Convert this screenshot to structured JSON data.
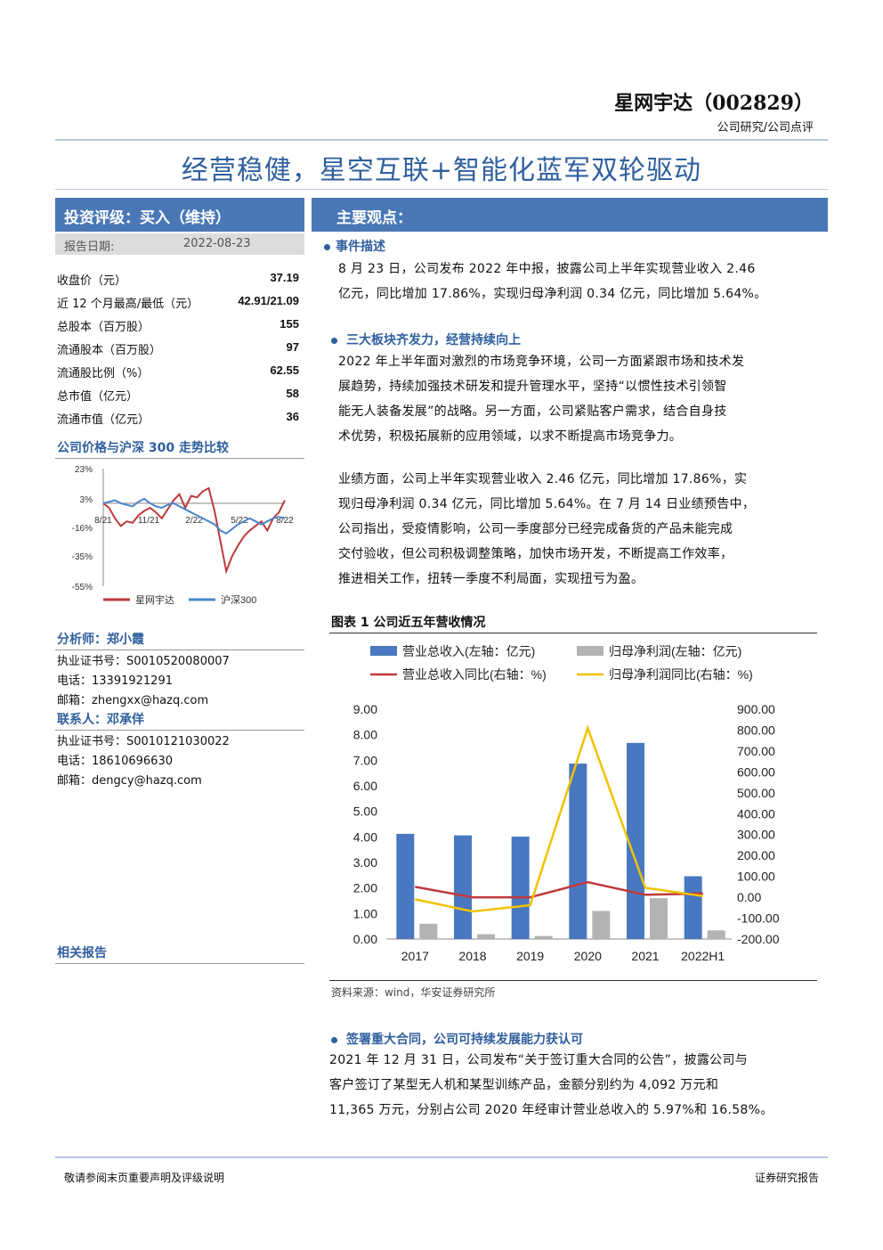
{
  "header": {
    "company": "星网宇达（002829）",
    "subtitle": "公司研究/公司点评",
    "title": "经营稳健，星空互联+智能化蓝军双轮驱动"
  },
  "left": {
    "rating_label": "投资评级：买入（维持）",
    "report_date_label": "报告日期:",
    "report_date": "2022-08-23",
    "metrics": [
      {
        "k": "收盘价（元）",
        "v": "37.19"
      },
      {
        "k": "近 12 个月最高/最低（元）",
        "v": "42.91/21.09"
      },
      {
        "k": "总股本（百万股）",
        "v": "155"
      },
      {
        "k": "流通股本（百万股）",
        "v": "97"
      },
      {
        "k": "流通股比例（%）",
        "v": "62.55"
      },
      {
        "k": "总市值（亿元）",
        "v": "58"
      },
      {
        "k": "流通市值（亿元）",
        "v": "36"
      }
    ],
    "price_chart_title": "公司价格与沪深 300 走势比较",
    "analyst_label": "分析师：郑小霞",
    "analyst_lines": [
      "执业证书号：S0010520080007",
      "电话：13391921291",
      "邮箱：zhengxx@hazq.com"
    ],
    "contact_label": "联系人：邓承佯",
    "contact_lines": [
      "执业证书号：S0010121030022",
      "电话：18610696630",
      "邮箱：dengcy@hazq.com"
    ],
    "related_label": "相关报告"
  },
  "right": {
    "main_points_label": "主要观点：",
    "s1_title": "事件描述",
    "s1_lines": [
      "8 月 23 日，公司发布 2022 年中报，披露公司上半年实现营业收入 2.46",
      "亿元，同比增加 17.86%，实现归母净利润 0.34 亿元，同比增加 5.64%。"
    ],
    "s2_title": "三大板块齐发力，经营持续向上",
    "s2_lines": [
      "2022 年上半年面对激烈的市场竞争环境，公司一方面紧跟市场和技术发",
      "展趋势，持续加强技术研发和提升管理水平，坚持“以惯性技术引领智",
      "能无人装备发展”的战略。另一方面，公司紧贴客户需求，结合自身技",
      "术优势，积极拓展新的应用领域，以求不断提高市场竞争力。"
    ],
    "s3_lines": [
      "业绩方面，公司上半年实现营业收入 2.46 亿元，同比增加 17.86%，实",
      "现归母净利润 0.34 亿元，同比增加 5.64%。在 7 月 14 日业绩预告中，",
      "公司指出，受疫情影响，公司一季度部分已经完成备货的产品未能完成",
      "交付验收，但公司积极调整策略，加快市场开发，不断提高工作效率，",
      "推进相关工作，扭转一季度不利局面，实现扭亏为盈。"
    ],
    "fig_title": "图表 1 公司近五年营收情况",
    "fig_source": "资料来源：wind，华安证券研究所",
    "s4_title": "签署重大合同，公司可持续发展能力获认可",
    "s4_lines": [
      "2021 年 12 月 31 日，公司发布“关于签订重大合同的公告”，披露公司与",
      "客户签订了某型无人机和某型训练产品，金额分别约为 4,092 万元和",
      "11,365 万元，分别占公司 2020 年经审计营业总收入的 5.97%和 16.58%。"
    ]
  },
  "footer": {
    "left": "敬请参阅末页重要声明及评级说明",
    "right": "证券研究报告"
  },
  "chart_data": [
    {
      "type": "line",
      "title": "公司价格与沪深 300 走势比较",
      "x_tick_labels": [
        "8/21",
        "11/21",
        "2/22",
        "5/22",
        "8/22"
      ],
      "y_tick_labels": [
        "23%",
        "3%",
        "-16%",
        "-35%",
        "-55%"
      ],
      "ylim": [
        -55,
        23
      ],
      "series": [
        {
          "name": "星网宇达",
          "color": "#c0393b",
          "values": [
            0,
            -3,
            -10,
            -15,
            -12,
            -13,
            -8,
            -5,
            -3,
            -6,
            -10,
            -4,
            2,
            6,
            -3,
            5,
            4,
            8,
            10,
            -5,
            -25,
            -45,
            -35,
            -28,
            -22,
            -18,
            -15,
            -12,
            -18,
            -10,
            -6,
            2
          ]
        },
        {
          "name": "沪深300",
          "color": "#4a86c8",
          "values": [
            0,
            1,
            2,
            0,
            -1,
            -2,
            1,
            3,
            0,
            -2,
            -3,
            -1,
            0,
            -2,
            -4,
            -6,
            -8,
            -10,
            -12,
            -14,
            -18,
            -20,
            -17,
            -14,
            -12,
            -10,
            -12,
            -14,
            -12,
            -10,
            -9,
            -10
          ]
        }
      ]
    },
    {
      "type": "bar",
      "categories": [
        "2017",
        "2018",
        "2019",
        "2020",
        "2021",
        "2022H1"
      ],
      "y_left_ticks": [
        "9.00",
        "8.00",
        "7.00",
        "6.00",
        "5.00",
        "4.00",
        "3.00",
        "2.00",
        "1.00",
        "0.00"
      ],
      "y_right_ticks": [
        "900.00",
        "800.00",
        "700.00",
        "600.00",
        "500.00",
        "400.00",
        "300.00",
        "200.00",
        "100.00",
        "0.00",
        "-100.00",
        "-200.00"
      ],
      "ylim_left": [
        0,
        9
      ],
      "ylim_right": [
        -200,
        900
      ],
      "series": [
        {
          "name": "营业总收入(左轴：亿元)",
          "type": "bar",
          "color": "#4a78c0",
          "values": [
            4.12,
            4.06,
            4.01,
            6.87,
            7.68,
            2.46
          ]
        },
        {
          "name": "归母净利润(左轴：亿元)",
          "type": "bar",
          "color": "#b3b3b3",
          "values": [
            0.6,
            0.19,
            0.12,
            1.1,
            1.6,
            0.34
          ]
        },
        {
          "name": "营业总收入同比(右轴：%)",
          "type": "line",
          "color": "#c0393b",
          "values": [
            50,
            0,
            0,
            72,
            12,
            18
          ]
        },
        {
          "name": "归母净利润同比(右轴：%)",
          "type": "line",
          "color": "#f2c200",
          "values": [
            -10,
            -68,
            -38,
            810,
            45,
            6
          ]
        }
      ]
    }
  ]
}
